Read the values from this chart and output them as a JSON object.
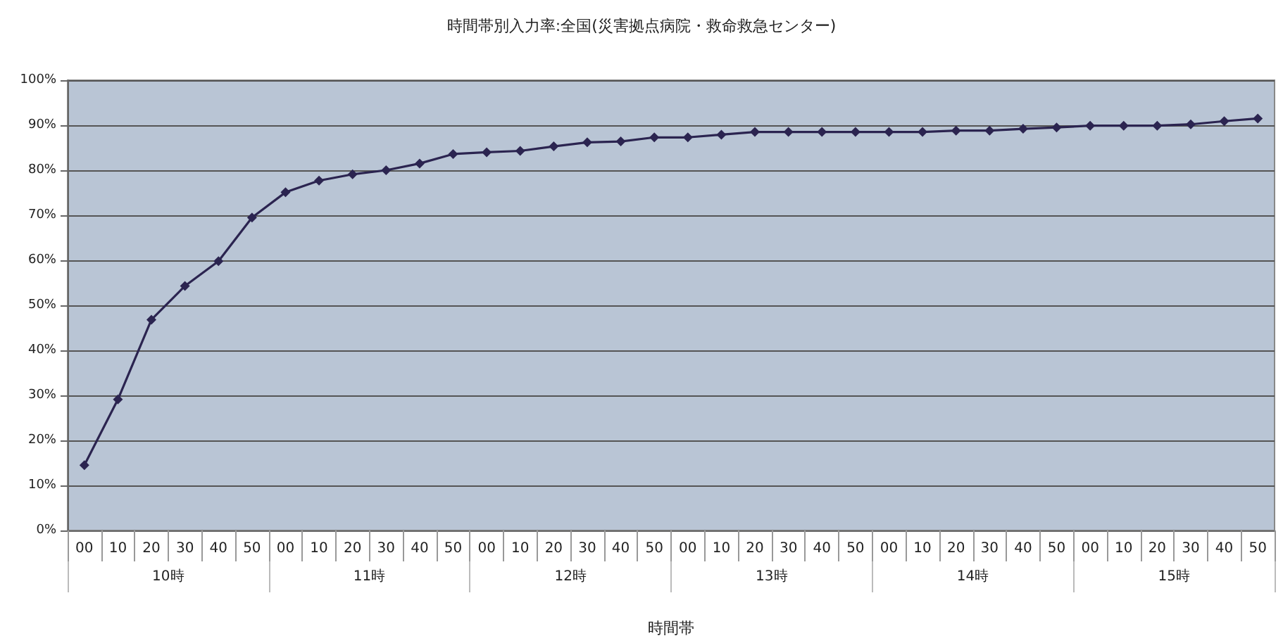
{
  "chart_data": {
    "type": "line",
    "title": "時間帯別入力率:全国(災害拠点病院・救命救急センター)",
    "xlabel": "時間帯",
    "categories": [
      "00",
      "10",
      "20",
      "30",
      "40",
      "50",
      "00",
      "10",
      "20",
      "30",
      "40",
      "50",
      "00",
      "10",
      "20",
      "30",
      "40",
      "50",
      "00",
      "10",
      "20",
      "30",
      "40",
      "50",
      "00",
      "10",
      "20",
      "30",
      "40",
      "50",
      "00",
      "10",
      "20",
      "30",
      "40",
      "50"
    ],
    "series": [
      {
        "color": "#2b2450",
        "values": [
          14.5,
          29.1,
          46.8,
          54.3,
          59.8,
          69.5,
          75.1,
          77.7,
          79.1,
          80.0,
          81.5,
          83.6,
          84.0,
          84.3,
          85.3,
          86.2,
          86.4,
          87.3,
          87.3,
          87.9,
          88.5,
          88.5,
          88.5,
          88.5,
          88.5,
          88.5,
          88.8,
          88.8,
          89.2,
          89.5,
          89.9,
          89.9,
          89.9,
          90.2,
          90.9,
          91.5
        ]
      }
    ],
    "annotations": [
      "10時",
      "11時",
      "12時",
      "13時",
      "14時",
      "15時"
    ],
    "ylim": [
      0,
      100
    ],
    "yticks": [
      {
        "value": 0,
        "label": "0%"
      },
      {
        "value": 10,
        "label": "10%"
      },
      {
        "value": 20,
        "label": "20%"
      },
      {
        "value": 30,
        "label": "30%"
      },
      {
        "value": 40,
        "label": "40%"
      },
      {
        "value": 50,
        "label": "50%"
      },
      {
        "value": 60,
        "label": "60%"
      },
      {
        "value": 70,
        "label": "70%"
      },
      {
        "value": 80,
        "label": "80%"
      },
      {
        "value": 90,
        "label": "90%"
      },
      {
        "value": 100,
        "label": "100%"
      }
    ],
    "grid": "y",
    "marker": "diamond",
    "line_style": "solid"
  }
}
